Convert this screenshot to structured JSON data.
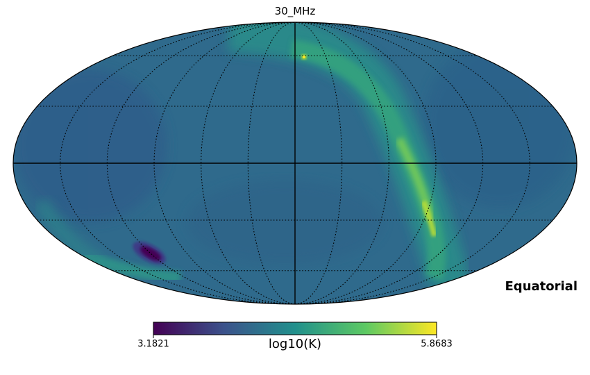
{
  "map": {
    "title": "30_MHz",
    "projection": "mollweide",
    "coord_system": "Equatorial",
    "graticule": "dotted",
    "colormap": "viridis",
    "colors": [
      "#440154",
      "#3b528b",
      "#21908c",
      "#5dc963",
      "#fde725"
    ]
  },
  "colorbar": {
    "min_label": "3.1821",
    "max_label": "5.8683",
    "label": "log10(K)"
  }
}
